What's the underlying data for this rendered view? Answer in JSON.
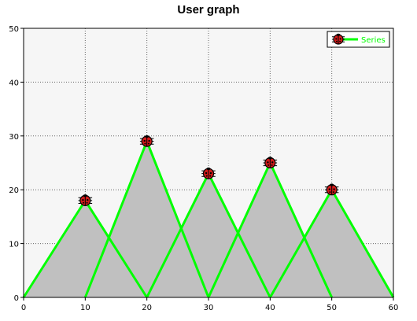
{
  "chart_data": {
    "type": "area",
    "title": "User graph",
    "xlabel": "",
    "ylabel": "",
    "xlim": [
      0,
      60
    ],
    "ylim": [
      0,
      50
    ],
    "x_ticks": [
      "0",
      "10",
      "20",
      "30",
      "40",
      "50",
      "60"
    ],
    "y_ticks": [
      "0",
      "10",
      "20",
      "30",
      "40",
      "50"
    ],
    "grid": true,
    "legend_position": "top-right",
    "series": [
      {
        "name": "Series",
        "color": "#00ff00",
        "fill_color": "#c0c0c0",
        "marker": "ladybug-icon",
        "peaks": [
          {
            "x": 10,
            "y": 18
          },
          {
            "x": 20,
            "y": 29
          },
          {
            "x": 30,
            "y": 23
          },
          {
            "x": 40,
            "y": 25
          },
          {
            "x": 50,
            "y": 20
          }
        ],
        "triangles": [
          [
            [
              0,
              0
            ],
            [
              10,
              18
            ],
            [
              20,
              0
            ]
          ],
          [
            [
              10,
              0
            ],
            [
              20,
              29
            ],
            [
              30,
              0
            ]
          ],
          [
            [
              20,
              0
            ],
            [
              30,
              23
            ],
            [
              40,
              0
            ]
          ],
          [
            [
              30,
              0
            ],
            [
              40,
              25
            ],
            [
              50,
              0
            ]
          ],
          [
            [
              40,
              0
            ],
            [
              50,
              20
            ],
            [
              60,
              0
            ]
          ]
        ]
      }
    ],
    "colors": {
      "plot_background": "#f6f6f6",
      "grid": "#666666",
      "marker_body": "#d11a1a"
    }
  }
}
